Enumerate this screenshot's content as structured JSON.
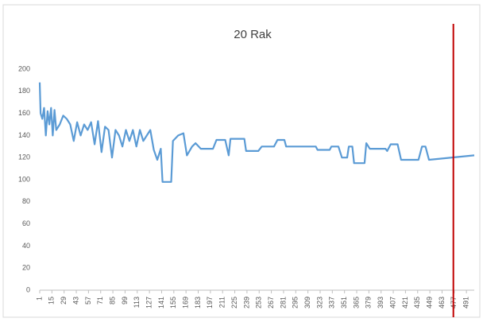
{
  "chart_data": {
    "type": "line",
    "title": "20  Rak",
    "x": [
      1,
      2,
      4,
      6,
      8,
      10,
      12,
      14,
      16,
      18,
      20,
      24,
      28,
      32,
      36,
      40,
      44,
      48,
      52,
      56,
      60,
      64,
      68,
      72,
      76,
      80,
      84,
      88,
      92,
      96,
      100,
      104,
      108,
      112,
      116,
      120,
      124,
      128,
      132,
      136,
      140,
      142,
      152,
      154,
      160,
      166,
      170,
      176,
      180,
      186,
      200,
      204,
      214,
      218,
      220,
      236,
      238,
      252,
      256,
      270,
      274,
      282,
      284,
      318,
      320,
      334,
      336,
      344,
      348,
      354,
      356,
      360,
      362,
      374,
      376,
      380,
      398,
      400,
      404,
      412,
      416,
      436,
      440,
      444,
      448,
      500
    ],
    "values": [
      188,
      160,
      155,
      165,
      140,
      162,
      150,
      165,
      140,
      163,
      145,
      150,
      158,
      155,
      150,
      135,
      152,
      140,
      150,
      145,
      152,
      132,
      153,
      125,
      148,
      145,
      120,
      145,
      140,
      130,
      145,
      135,
      145,
      130,
      145,
      135,
      140,
      145,
      127,
      118,
      128,
      98,
      98,
      135,
      140,
      142,
      122,
      130,
      133,
      128,
      128,
      136,
      136,
      122,
      137,
      137,
      126,
      126,
      130,
      130,
      136,
      136,
      130,
      130,
      127,
      127,
      130,
      130,
      120,
      120,
      130,
      130,
      115,
      115,
      133,
      128,
      128,
      126,
      132,
      132,
      118,
      118,
      130,
      130,
      118,
      122
    ],
    "color": "#5b9bd5",
    "xlim": [
      1,
      500
    ],
    "xticks": [
      1,
      15,
      29,
      43,
      57,
      71,
      85,
      99,
      113,
      127,
      141,
      155,
      169,
      183,
      197,
      211,
      225,
      239,
      253,
      267,
      281,
      295,
      309,
      323,
      337,
      351,
      365,
      379,
      393,
      407,
      421,
      435,
      449,
      463,
      477,
      491
    ],
    "ylim": [
      0,
      200
    ],
    "yticks": [
      0,
      20,
      40,
      60,
      80,
      100,
      120,
      140,
      160,
      180,
      200
    ],
    "vline": {
      "x": 476,
      "color": "#c00000"
    }
  }
}
